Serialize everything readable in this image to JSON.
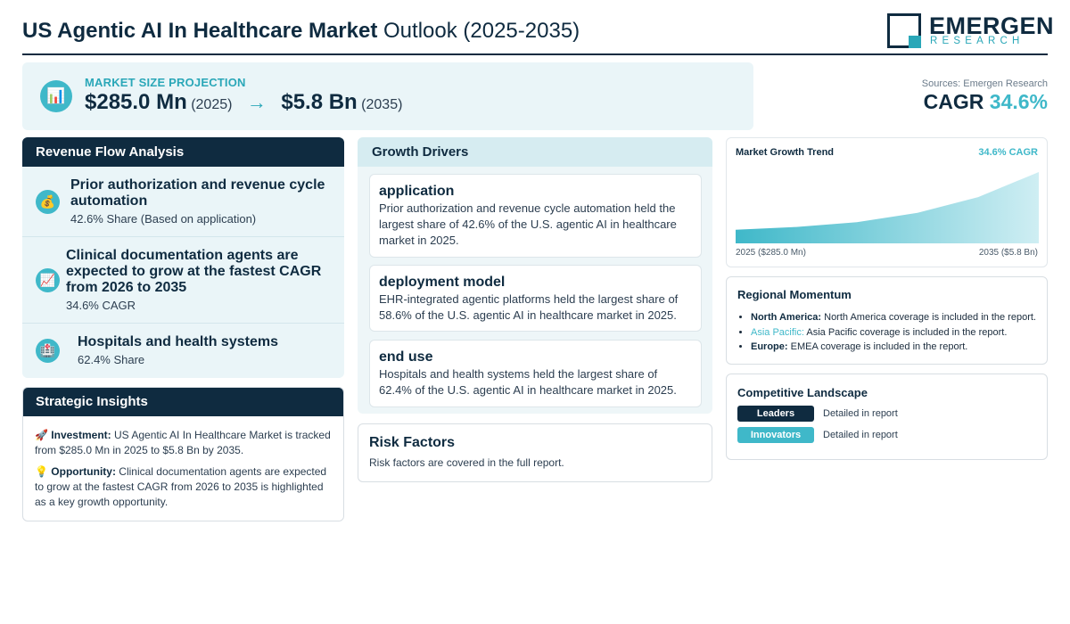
{
  "header": {
    "title_bold": "US Agentic AI In Healthcare Market",
    "title_rest": "Outlook (2025-2035)",
    "logo_main": "EMERGEN",
    "logo_sub": "RESEARCH"
  },
  "projection": {
    "label": "MARKET SIZE PROJECTION",
    "start_value": "$285.0 Mn",
    "start_year": "(2025)",
    "arrow": "→",
    "end_value": "$5.8 Bn",
    "end_year": "(2035)",
    "icon": "chart-icon"
  },
  "sources": "Sources: Emergen Research",
  "cagr": {
    "label": "CAGR",
    "value": "34.6%"
  },
  "revenue": {
    "title": "Revenue Flow Analysis",
    "items": [
      {
        "title": "Prior authorization and revenue cycle automation",
        "sub": "42.6% Share (Based on application)",
        "icon": "money-bag-icon"
      },
      {
        "title": "Clinical documentation agents are expected to grow at the fastest CAGR from 2026 to 2035",
        "sub": "34.6% CAGR",
        "icon": "trend-up-icon"
      },
      {
        "title": "Hospitals and health systems",
        "sub": "62.4% Share",
        "icon": "hospital-icon"
      }
    ]
  },
  "strategic": {
    "title": "Strategic Insights",
    "investment_label": "Investment:",
    "investment_text": "US Agentic AI In Healthcare Market is tracked from $285.0 Mn in 2025 to $5.8 Bn by 2035.",
    "opportunity_label": "Opportunity:",
    "opportunity_text": "Clinical documentation agents are expected to grow at the fastest CAGR from 2026 to 2035 is highlighted as a key growth opportunity."
  },
  "drivers": {
    "title": "Growth Drivers",
    "items": [
      {
        "title": "application",
        "text": "Prior authorization and revenue cycle automation held the largest share of 42.6% of the U.S. agentic AI in healthcare market in 2025."
      },
      {
        "title": "deployment model",
        "text": "EHR-integrated agentic platforms held the largest share of 58.6% of the U.S. agentic AI in healthcare market in 2025."
      },
      {
        "title": "end use",
        "text": "Hospitals and health systems held the largest share of 62.4% of the U.S. agentic AI in healthcare market in 2025."
      }
    ]
  },
  "risk": {
    "title": "Risk Factors",
    "text": "Risk factors are covered in the full report."
  },
  "trend": {
    "title": "Market Growth Trend",
    "cagr": "34.6% CAGR",
    "start_label": "2025 ($285.0 Mn)",
    "end_label": "2035 ($5.8 Bn)"
  },
  "chart_data": {
    "type": "area",
    "title": "Market Growth Trend",
    "x": [
      2025,
      2027,
      2029,
      2031,
      2033,
      2035
    ],
    "values": [
      0.285,
      0.55,
      1.0,
      1.9,
      3.4,
      5.8
    ],
    "unit": "USD Bn",
    "start_label": "2025 ($285.0 Mn)",
    "end_label": "2035 ($5.8 Bn)",
    "grid": false
  },
  "regional": {
    "title": "Regional Momentum",
    "items": [
      {
        "region": "North America:",
        "text": "North America coverage is included in the report."
      },
      {
        "region": "Asia Pacific:",
        "text": "Asia Pacific coverage is included in the report."
      },
      {
        "region": "Europe:",
        "text": "EMEA coverage is included in the report."
      }
    ]
  },
  "competitive": {
    "title": "Competitive Landscape",
    "items": [
      {
        "label": "Leaders",
        "text": "Detailed in report"
      },
      {
        "label": "Innovators",
        "text": "Detailed in report"
      }
    ]
  },
  "colors": {
    "navy": "#0f2b40",
    "teal": "#3fb8c9",
    "light": "#eaf5f8"
  }
}
